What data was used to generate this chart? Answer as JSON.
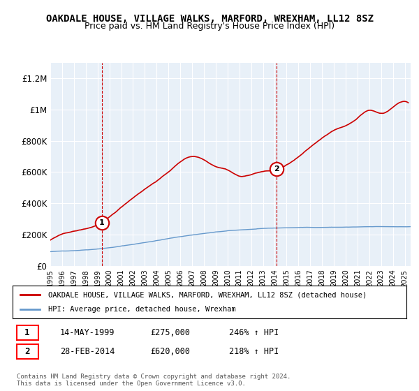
{
  "title": "OAKDALE HOUSE, VILLAGE WALKS, MARFORD, WREXHAM, LL12 8SZ",
  "subtitle": "Price paid vs. HM Land Registry's House Price Index (HPI)",
  "ylabel_ticks": [
    "£0",
    "£200K",
    "£400K",
    "£600K",
    "£800K",
    "£1M",
    "£1.2M"
  ],
  "ytick_vals": [
    0,
    200000,
    400000,
    600000,
    800000,
    1000000,
    1200000
  ],
  "ylim": [
    0,
    1300000
  ],
  "xlim_start": 1995.0,
  "xlim_end": 2025.5,
  "sale1_x": 1999.37,
  "sale1_y": 275000,
  "sale1_label": "1",
  "sale1_date": "14-MAY-1999",
  "sale1_price": "£275,000",
  "sale1_hpi": "246% ↑ HPI",
  "sale2_x": 2014.17,
  "sale2_y": 620000,
  "sale2_label": "2",
  "sale2_date": "28-FEB-2014",
  "sale2_price": "£620,000",
  "sale2_hpi": "218% ↑ HPI",
  "line1_color": "#cc0000",
  "line2_color": "#6699cc",
  "vline_color": "#cc0000",
  "background_color": "#ffffff",
  "plot_bg_color": "#e8f0f8",
  "grid_color": "#ffffff",
  "legend1_label": "OAKDALE HOUSE, VILLAGE WALKS, MARFORD, WREXHAM, LL12 8SZ (detached house)",
  "legend2_label": "HPI: Average price, detached house, Wrexham",
  "footnote": "Contains HM Land Registry data © Crown copyright and database right 2024.\nThis data is licensed under the Open Government Licence v3.0.",
  "title_fontsize": 10,
  "subtitle_fontsize": 9
}
